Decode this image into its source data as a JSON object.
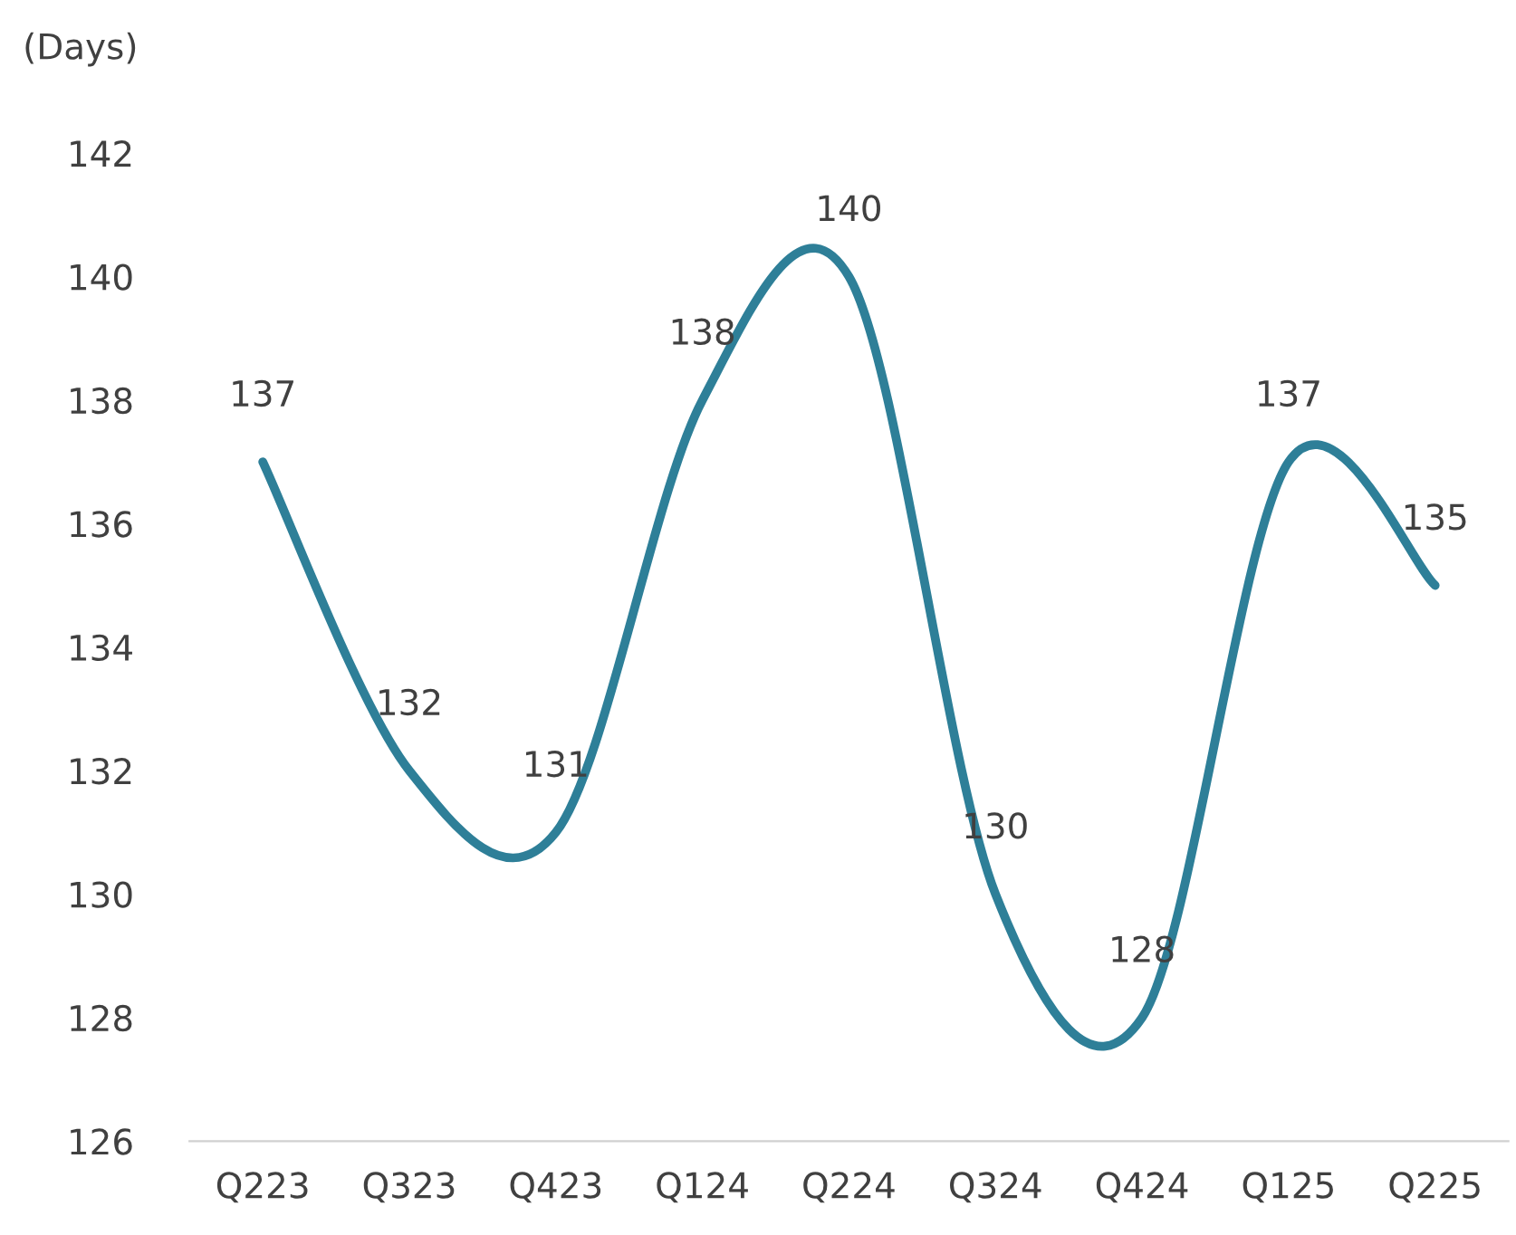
{
  "chart_data": {
    "type": "line",
    "ylabel": "(Days)",
    "categories": [
      "Q223",
      "Q323",
      "Q423",
      "Q124",
      "Q224",
      "Q324",
      "Q424",
      "Q125",
      "Q225"
    ],
    "series": [
      {
        "color": "#2e7f98",
        "values": [
          137,
          132,
          131,
          138,
          140,
          130,
          128,
          137,
          135
        ]
      }
    ],
    "ylim": [
      126,
      142
    ],
    "yticks": [
      126,
      128,
      130,
      132,
      134,
      136,
      138,
      140,
      142
    ],
    "data_labels": true,
    "grid": false,
    "marker": "none",
    "line_style": "solid"
  }
}
